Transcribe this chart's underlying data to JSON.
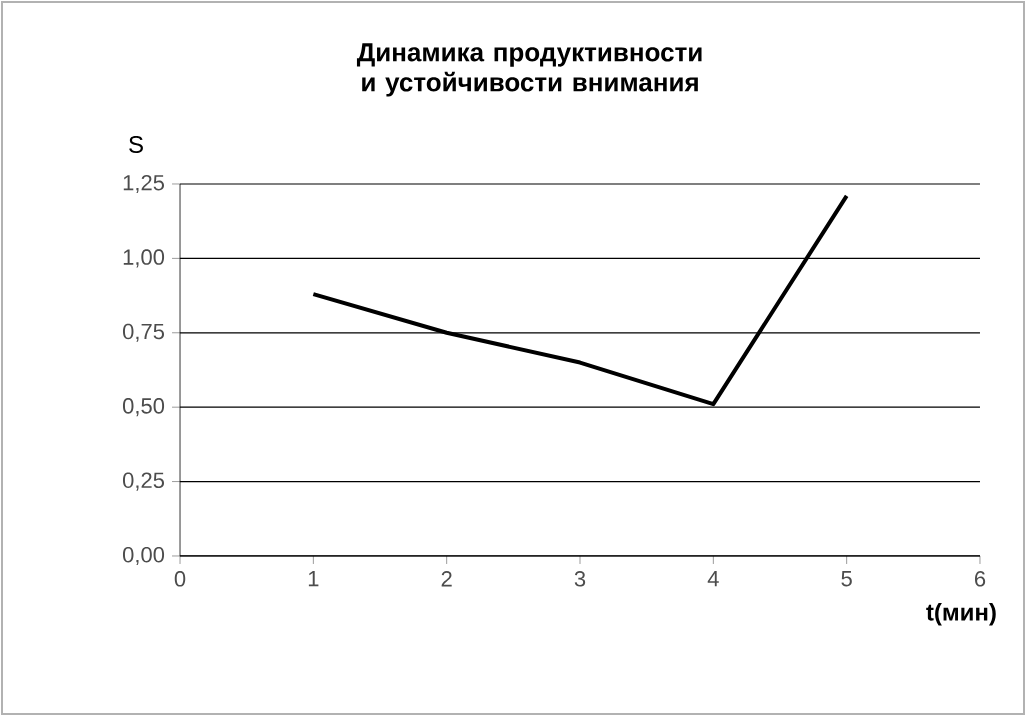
{
  "chart_data": {
    "type": "line",
    "title": "Динамика продуктивности и устойчивости внимания",
    "xlabel": "t(мин)",
    "ylabel": "S",
    "x": [
      1,
      2,
      3,
      4,
      5
    ],
    "series": [
      {
        "color": "#000000",
        "values": [
          0.88,
          0.75,
          0.65,
          0.51,
          1.21
        ]
      }
    ],
    "xlim": [
      0,
      6
    ],
    "xticks": [
      0,
      1,
      2,
      3,
      4,
      5,
      6
    ],
    "ylim": [
      0,
      1.25
    ],
    "yticks": [
      {
        "value": 0,
        "label": "0,00"
      },
      {
        "value": 0.25,
        "label": "0,25"
      },
      {
        "value": 0.5,
        "label": "0,50"
      },
      {
        "value": 0.75,
        "label": "0,75"
      },
      {
        "value": 1.0,
        "label": "1,00"
      },
      {
        "value": 1.25,
        "label": "1,25"
      }
    ],
    "grid": "y",
    "legend": false,
    "marker": "none",
    "line_style": "solid"
  }
}
